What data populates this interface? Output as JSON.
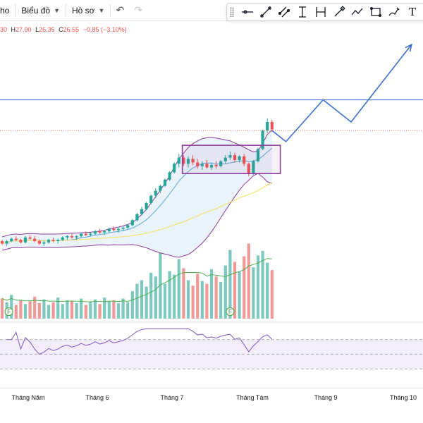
{
  "toolbar": {
    "cut_label": "ho",
    "chart_menu": "Biểu đồ",
    "profile_menu": "Hồ sơ",
    "undo_icon": "undo-icon",
    "redo_icon": "redo-icon"
  },
  "draw_tools": [
    {
      "name": "horizontal-ray-icon"
    },
    {
      "name": "trend-line-icon"
    },
    {
      "name": "parallel-channel-icon"
    },
    {
      "name": "long-position-icon"
    },
    {
      "name": "fib-retracement-icon"
    },
    {
      "name": "brush-icon"
    },
    {
      "name": "path-icon"
    },
    {
      "name": "rectangle-icon"
    },
    {
      "name": "pencil-icon"
    },
    {
      "name": "text-tool-icon",
      "text": "T"
    }
  ],
  "ohlc": {
    "open": "30",
    "high_label": "H",
    "high": "27.90",
    "low_label": "L",
    "low": "26.35",
    "close_label": "C",
    "close": "26.55",
    "change": "−0.85",
    "change_pct": "(−3.10%)"
  },
  "events": {
    "dividend_label": "F"
  },
  "x_axis": {
    "labels": [
      "Tháng Năm",
      "Tháng 6",
      "Tháng 7",
      "Tháng Tám",
      "Tháng 9",
      "Tháng 10"
    ]
  },
  "colors": {
    "up": "#26a69a",
    "down": "#ef5350",
    "vol_up": "#7dc9bf",
    "vol_down": "#f09a98",
    "bb": "#8e3a9d",
    "ma_fast": "#5aa8d6",
    "ma_slow": "#f2e26b",
    "projection": "#3f6fd0",
    "box": "#8e3a9d"
  },
  "chart_data": {
    "type": "candlestick",
    "candles": [
      [
        26.5,
        26.6,
        26.2,
        26.3
      ],
      [
        26.3,
        26.6,
        26.1,
        26.5
      ],
      [
        26.5,
        26.8,
        26.4,
        26.7
      ],
      [
        26.7,
        26.9,
        26.5,
        26.6
      ],
      [
        26.6,
        26.7,
        26.3,
        26.4
      ],
      [
        26.4,
        26.9,
        26.3,
        26.8
      ],
      [
        26.8,
        27.0,
        26.6,
        26.7
      ],
      [
        26.7,
        26.9,
        26.4,
        26.5
      ],
      [
        26.5,
        26.6,
        26.2,
        26.3
      ],
      [
        26.3,
        26.5,
        26.1,
        26.4
      ],
      [
        26.4,
        26.7,
        26.3,
        26.6
      ],
      [
        26.6,
        26.8,
        26.4,
        26.5
      ],
      [
        26.5,
        26.7,
        26.3,
        26.6
      ],
      [
        26.6,
        26.9,
        26.5,
        26.8
      ],
      [
        26.8,
        27.0,
        26.6,
        26.9
      ],
      [
        26.9,
        27.1,
        26.7,
        26.8
      ],
      [
        26.8,
        27.0,
        26.6,
        26.9
      ],
      [
        26.9,
        27.2,
        26.8,
        27.1
      ],
      [
        27.1,
        27.3,
        26.9,
        27.0
      ],
      [
        27.0,
        27.2,
        26.9,
        27.1
      ],
      [
        27.1,
        27.4,
        27.0,
        27.3
      ],
      [
        27.3,
        27.5,
        27.1,
        27.2
      ],
      [
        27.2,
        27.4,
        27.0,
        27.3
      ],
      [
        27.3,
        27.6,
        27.2,
        27.5
      ],
      [
        27.5,
        27.7,
        27.3,
        27.4
      ],
      [
        27.4,
        27.6,
        27.2,
        27.5
      ],
      [
        27.5,
        27.7,
        27.3,
        27.6
      ],
      [
        27.6,
        27.9,
        27.5,
        27.8
      ],
      [
        27.8,
        28.3,
        27.7,
        28.2
      ],
      [
        28.2,
        28.8,
        28.1,
        28.7
      ],
      [
        28.7,
        29.3,
        28.6,
        29.1
      ],
      [
        29.1,
        29.7,
        29.0,
        29.6
      ],
      [
        29.6,
        30.3,
        29.5,
        30.2
      ],
      [
        30.2,
        30.8,
        30.0,
        30.6
      ],
      [
        30.6,
        31.1,
        30.4,
        31.0
      ],
      [
        31.0,
        31.6,
        30.9,
        31.5
      ],
      [
        31.5,
        32.2,
        31.4,
        32.1
      ],
      [
        32.1,
        32.9,
        32.0,
        32.8
      ],
      [
        32.8,
        33.6,
        32.5,
        33.3
      ],
      [
        33.3,
        33.5,
        32.6,
        32.8
      ],
      [
        32.8,
        33.4,
        32.5,
        33.2
      ],
      [
        33.2,
        33.5,
        32.7,
        32.9
      ],
      [
        32.9,
        33.2,
        32.4,
        32.6
      ],
      [
        32.6,
        33.0,
        32.3,
        32.8
      ],
      [
        32.8,
        33.1,
        32.4,
        32.5
      ],
      [
        32.5,
        32.9,
        32.3,
        32.7
      ],
      [
        32.7,
        33.0,
        32.4,
        32.6
      ],
      [
        32.6,
        33.1,
        32.5,
        33.0
      ],
      [
        33.0,
        33.5,
        32.8,
        33.3
      ],
      [
        33.3,
        33.8,
        33.1,
        33.5
      ],
      [
        33.5,
        33.7,
        32.9,
        33.1
      ],
      [
        33.1,
        33.5,
        32.9,
        33.4
      ],
      [
        33.4,
        33.6,
        32.6,
        32.8
      ],
      [
        32.8,
        32.9,
        31.8,
        32.0
      ],
      [
        32.0,
        33.1,
        31.9,
        33.0
      ],
      [
        33.0,
        34.1,
        32.9,
        34.0
      ],
      [
        34.0,
        35.6,
        33.9,
        35.5
      ],
      [
        35.5,
        36.5,
        35.3,
        36.2
      ],
      [
        36.2,
        36.4,
        35.4,
        35.6
      ]
    ],
    "volume": [
      2.2,
      1.8,
      2.6,
      1.5,
      2.0,
      1.6,
      1.9,
      2.4,
      1.7,
      2.1,
      1.5,
      1.8,
      2.3,
      1.6,
      2.0,
      1.9,
      1.7,
      2.2,
      1.5,
      1.8,
      2.1,
      1.6,
      2.3,
      1.9,
      2.0,
      1.7,
      2.2,
      1.8,
      3.0,
      3.8,
      4.2,
      3.5,
      5.0,
      4.6,
      7.2,
      3.8,
      5.2,
      4.8,
      6.5,
      5.5,
      4.2,
      3.6,
      4.9,
      4.1,
      3.8,
      5.4,
      4.6,
      4.0,
      5.8,
      7.5,
      6.2,
      5.1,
      6.8,
      8.2,
      5.6,
      6.9,
      7.4,
      6.1,
      5.3
    ],
    "resistance_level": 38.0,
    "current_level": 35.5,
    "projection_path": [
      [
        58,
        35.5
      ],
      [
        61,
        34.6
      ],
      [
        69,
        38.0
      ],
      [
        75,
        36.2
      ],
      [
        88,
        42.5
      ]
    ],
    "box": {
      "from_index": 41,
      "to_index": 61,
      "low": 32.0,
      "high": 34.3
    },
    "rsi_bounds": [
      30,
      70
    ]
  }
}
